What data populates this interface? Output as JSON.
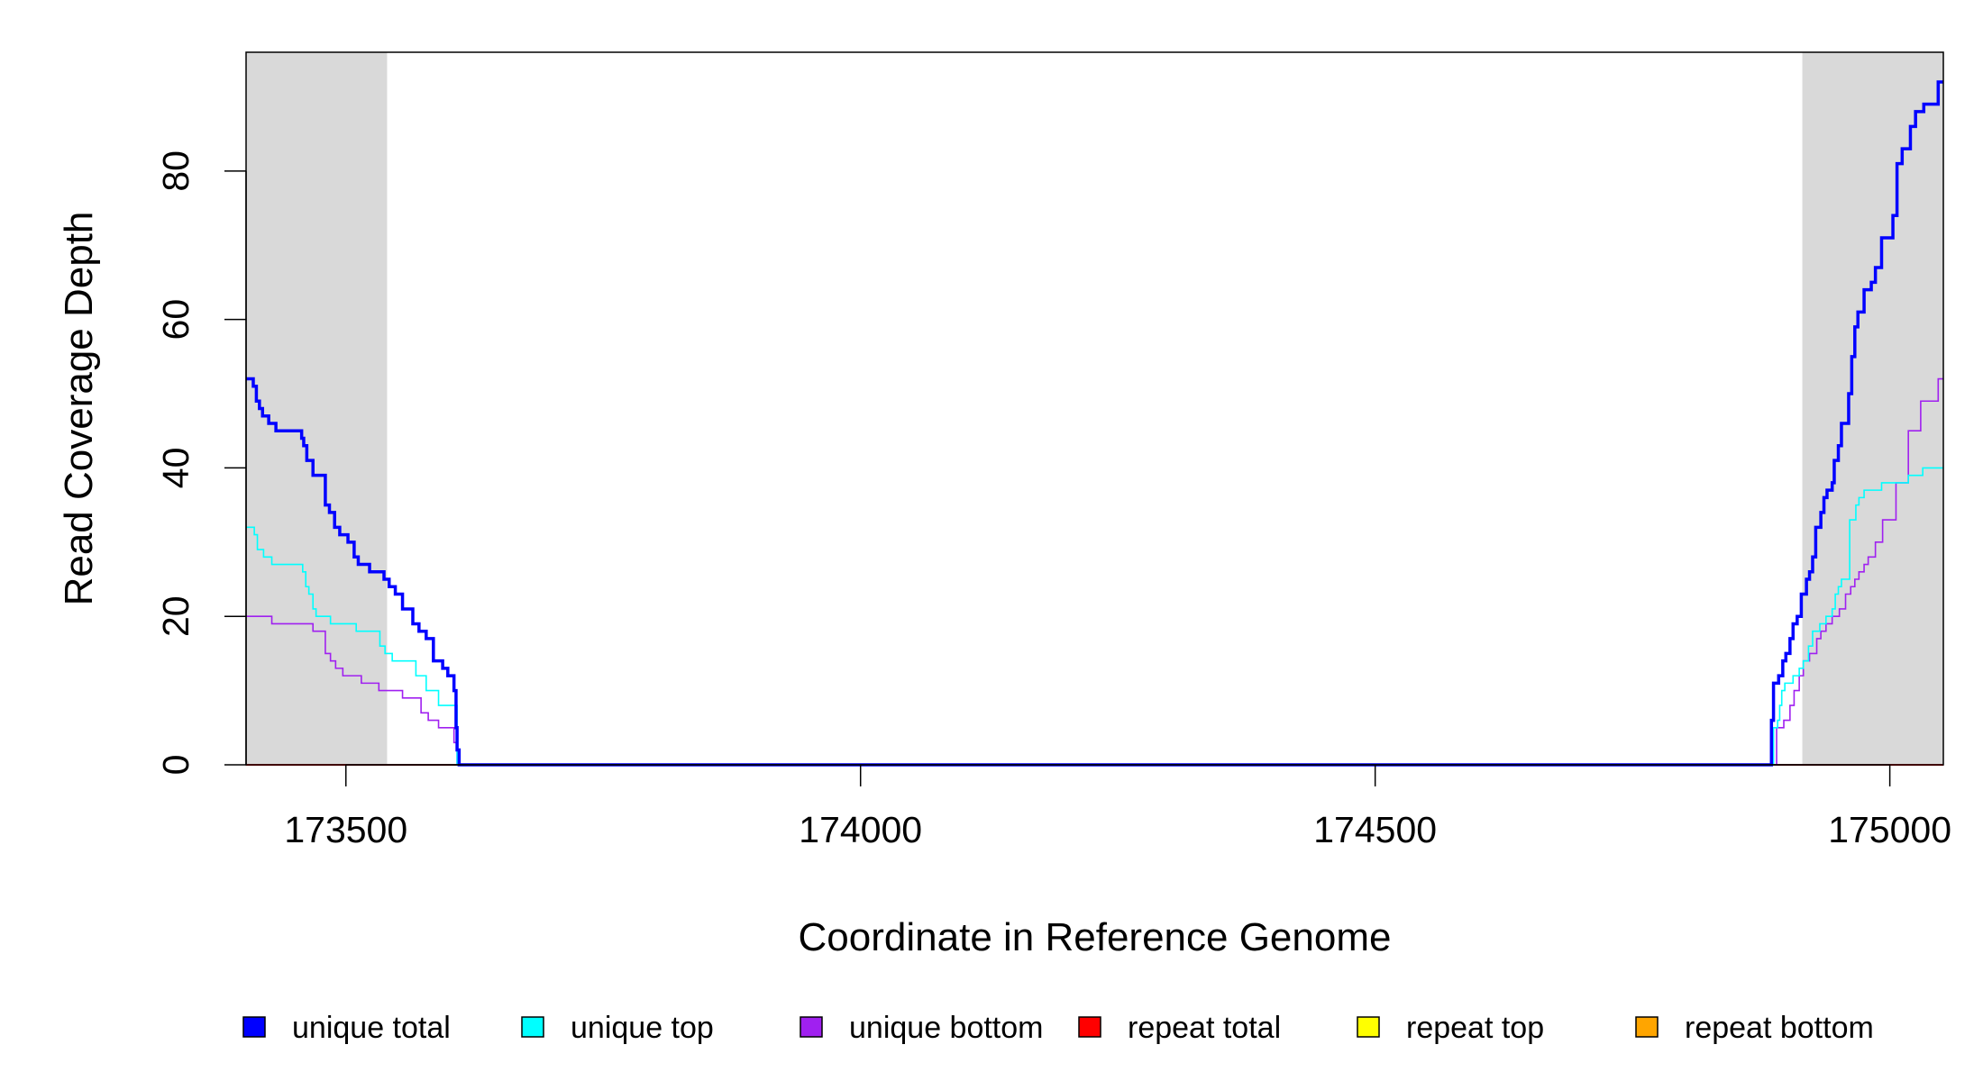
{
  "chart_data": {
    "type": "line",
    "title": "",
    "xlabel": "Coordinate in Reference Genome",
    "ylabel": "Read Coverage Depth",
    "xlim": [
      173403,
      175052
    ],
    "ylim": [
      0,
      96
    ],
    "xticks": [
      173500,
      174000,
      174500,
      175000
    ],
    "yticks": [
      0,
      20,
      40,
      60,
      80
    ],
    "grid": false,
    "legend_position": "bottom",
    "shaded_regions": [
      {
        "x0": 173403,
        "x1": 173540,
        "color": "#d9d9d9"
      },
      {
        "x0": 174915,
        "x1": 175052,
        "color": "#d9d9d9"
      }
    ],
    "series": [
      {
        "name": "unique total",
        "color": "#0000ff",
        "width": 3.5,
        "x": [
          173403,
          173410,
          173413,
          173416,
          173419,
          173425,
          173432,
          173454,
          173457,
          173459,
          173462,
          173468,
          173480,
          173484,
          173489,
          173494,
          173502,
          173508,
          173512,
          173523,
          173537,
          173540,
          173542,
          173548,
          173555,
          173565,
          173571,
          173578,
          173585,
          173589,
          173594,
          173599,
          173605,
          173607,
          173608,
          173610,
          173640,
          174000,
          174500,
          174880,
          174885,
          174887,
          174892,
          174896,
          174899,
          174903,
          174906,
          174910,
          174914,
          174919,
          174922,
          174925,
          174928,
          174933,
          174936,
          174939,
          174944,
          174946,
          174950,
          174953,
          174957,
          174960,
          174963,
          174966,
          174969,
          174975,
          174979,
          174982,
          174986,
          174992,
          174998,
          175003,
          175007,
          175012,
          175020,
          175025,
          175033,
          175047,
          175052
        ],
        "y": [
          52,
          51,
          49,
          48,
          47,
          46,
          45,
          45,
          44,
          43,
          41,
          39,
          35,
          34,
          32,
          31,
          30,
          28,
          27,
          26,
          25,
          25,
          24,
          23,
          21,
          19,
          18,
          17,
          14,
          14,
          13,
          12,
          10,
          5,
          2,
          0,
          0,
          0,
          0,
          0,
          6,
          11,
          12,
          14,
          15,
          17,
          19,
          20,
          23,
          25,
          26,
          28,
          32,
          34,
          36,
          37,
          38,
          41,
          43,
          46,
          46,
          50,
          55,
          59,
          61,
          64,
          64,
          65,
          67,
          71,
          71,
          74,
          81,
          83,
          86,
          88,
          89,
          92,
          92
        ]
      },
      {
        "name": "unique top",
        "color": "#00ffff",
        "width": 1.6,
        "x": [
          173403,
          173411,
          173414,
          173420,
          173428,
          173458,
          173461,
          173464,
          173468,
          173471,
          173479,
          173485,
          173502,
          173510,
          173533,
          173538,
          173545,
          173568,
          173578,
          173590,
          173600,
          173608,
          173640,
          174000,
          174500,
          174880,
          174887,
          174891,
          174893,
          174895,
          174898,
          174902,
          174906,
          174912,
          174916,
          174921,
          174925,
          174932,
          174938,
          174944,
          174947,
          174950,
          174953,
          174958,
          174961,
          174967,
          174970,
          174975,
          174982,
          174992,
          175000,
          175018,
          175032,
          175052
        ],
        "y": [
          32,
          31,
          29,
          28,
          27,
          26,
          24,
          23,
          21,
          20,
          20,
          19,
          19,
          18,
          16,
          15,
          14,
          12,
          10,
          8,
          8,
          0,
          0,
          0,
          0,
          0,
          5,
          6,
          8,
          10,
          11,
          11,
          12,
          13,
          14,
          16,
          18,
          19,
          20,
          21,
          23,
          24,
          25,
          25,
          33,
          35,
          36,
          37,
          37,
          38,
          38,
          39,
          40,
          40
        ]
      },
      {
        "name": "unique bottom",
        "color": "#a020f0",
        "width": 1.6,
        "x": [
          173403,
          173418,
          173428,
          173462,
          173468,
          173480,
          173485,
          173490,
          173497,
          173515,
          173532,
          173540,
          173555,
          173573,
          173580,
          173590,
          173600,
          173605,
          173608,
          173640,
          174000,
          174500,
          174880,
          174890,
          174897,
          174903,
          174907,
          174912,
          174916,
          174922,
          174929,
          174933,
          174938,
          174944,
          174951,
          174957,
          174962,
          174966,
          174970,
          174975,
          174979,
          174986,
          174993,
          174998,
          175006,
          175018,
          175030,
          175047,
          175052
        ],
        "y": [
          20,
          20,
          19,
          19,
          18,
          15,
          14,
          13,
          12,
          11,
          10,
          10,
          9,
          7,
          6,
          5,
          5,
          3,
          0,
          0,
          0,
          0,
          0,
          5,
          6,
          8,
          10,
          12,
          14,
          15,
          17,
          18,
          19,
          20,
          21,
          23,
          24,
          25,
          26,
          27,
          28,
          30,
          33,
          33,
          38,
          45,
          49,
          52,
          52
        ]
      },
      {
        "name": "repeat total",
        "color": "#ff0000",
        "width": 2,
        "x": [
          173403,
          175052
        ],
        "y": [
          0,
          0
        ]
      },
      {
        "name": "repeat top",
        "color": "#ffff00",
        "width": 2,
        "x": [
          173403,
          175052
        ],
        "y": [
          0,
          0
        ]
      },
      {
        "name": "repeat bottom",
        "color": "#ffa500",
        "width": 2,
        "x": [
          173403,
          175052
        ],
        "y": [
          0,
          0
        ]
      }
    ],
    "legend": [
      {
        "label": "unique total",
        "color": "#0000ff"
      },
      {
        "label": "unique top",
        "color": "#00ffff"
      },
      {
        "label": "unique bottom",
        "color": "#a020f0"
      },
      {
        "label": "repeat total",
        "color": "#ff0000"
      },
      {
        "label": "repeat top",
        "color": "#ffff00"
      },
      {
        "label": "repeat bottom",
        "color": "#ffa500"
      }
    ]
  }
}
